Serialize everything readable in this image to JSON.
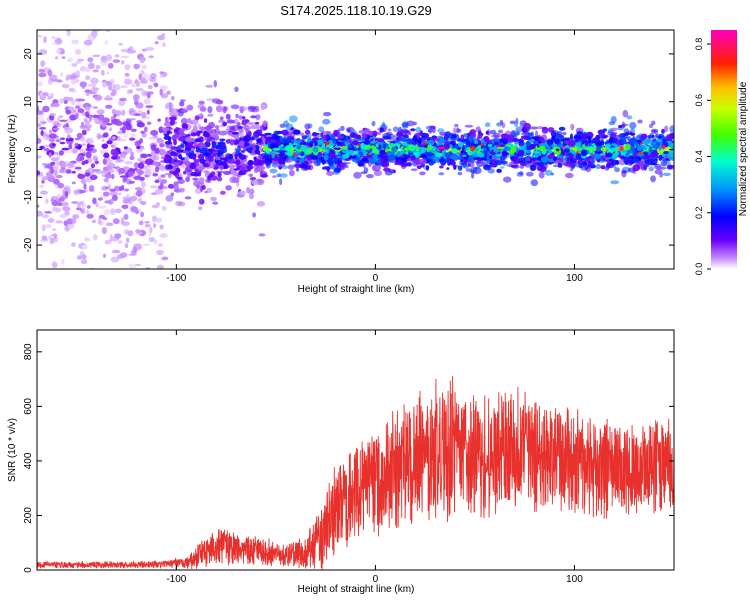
{
  "figure_title": "S174.2025.118.10.19.G29",
  "colors": {
    "snr_line": "#e8302c",
    "background": "#ffffff",
    "axis": "#000000"
  },
  "chart_data": [
    {
      "type": "heatmap",
      "name": "spectrogram",
      "title": "",
      "xlabel": "Height of straight line (km)",
      "ylabel": "Frequency (Hz)",
      "xlim": [
        -170,
        150
      ],
      "ylim": [
        -25,
        25
      ],
      "x_ticks": [
        -100,
        0,
        100
      ],
      "y_ticks": [
        -20,
        -10,
        0,
        10,
        20
      ],
      "x_tick_labels": [
        "-100",
        "0",
        "100"
      ],
      "y_tick_labels": [
        "-20",
        "-10",
        "0",
        "10",
        "20"
      ],
      "colorbar": {
        "label": "Normalized spectral amplitude",
        "range": [
          0,
          0.85
        ],
        "ticks": [
          0.0,
          0.2,
          0.4,
          0.6,
          0.8
        ],
        "tick_labels": [
          "0.0",
          "0.2",
          "0.4",
          "0.6",
          "0.8"
        ],
        "colormap": "rainbow (white-violet-blue-cyan-green-yellow-red-magenta)"
      },
      "description_regions": [
        {
          "x_range": [
            -170,
            -105
          ],
          "freq_spread": 25,
          "amplitude": 0.08
        },
        {
          "x_range": [
            -105,
            -55
          ],
          "freq_spread": 10,
          "amplitude": 0.18
        },
        {
          "x_range": [
            -55,
            150
          ],
          "freq_spread": 4,
          "amplitude": 0.4
        }
      ]
    },
    {
      "type": "line",
      "name": "snr",
      "title": "",
      "xlabel": "Height of straight line (km)",
      "ylabel": "SNR (10 * v/v)",
      "xlim": [
        -170,
        150
      ],
      "ylim": [
        0,
        880
      ],
      "x_ticks": [
        -100,
        0,
        100
      ],
      "y_ticks": [
        0,
        200,
        400,
        600,
        800
      ],
      "x_tick_labels": [
        "-100",
        "0",
        "100"
      ],
      "y_tick_labels": [
        "0",
        "200",
        "400",
        "600",
        "800"
      ],
      "series": [
        {
          "name": "SNR",
          "envelope_x": [
            -170,
            -110,
            -95,
            -85,
            -75,
            -65,
            -55,
            -45,
            -35,
            -28,
            -24,
            -20,
            -10,
            0,
            10,
            20,
            30,
            40,
            50,
            60,
            70,
            80,
            90,
            100,
            110,
            120,
            130,
            140,
            150
          ],
          "envelope_mean": [
            18,
            20,
            25,
            70,
            90,
            75,
            65,
            55,
            60,
            110,
            180,
            230,
            280,
            320,
            360,
            400,
            430,
            440,
            420,
            430,
            440,
            420,
            410,
            400,
            380,
            370,
            360,
            380,
            380
          ],
          "envelope_amp": [
            12,
            14,
            20,
            60,
            70,
            55,
            50,
            45,
            60,
            120,
            140,
            160,
            180,
            200,
            230,
            260,
            280,
            260,
            240,
            230,
            220,
            210,
            200,
            200,
            190,
            180,
            170,
            180,
            180
          ]
        }
      ]
    }
  ]
}
